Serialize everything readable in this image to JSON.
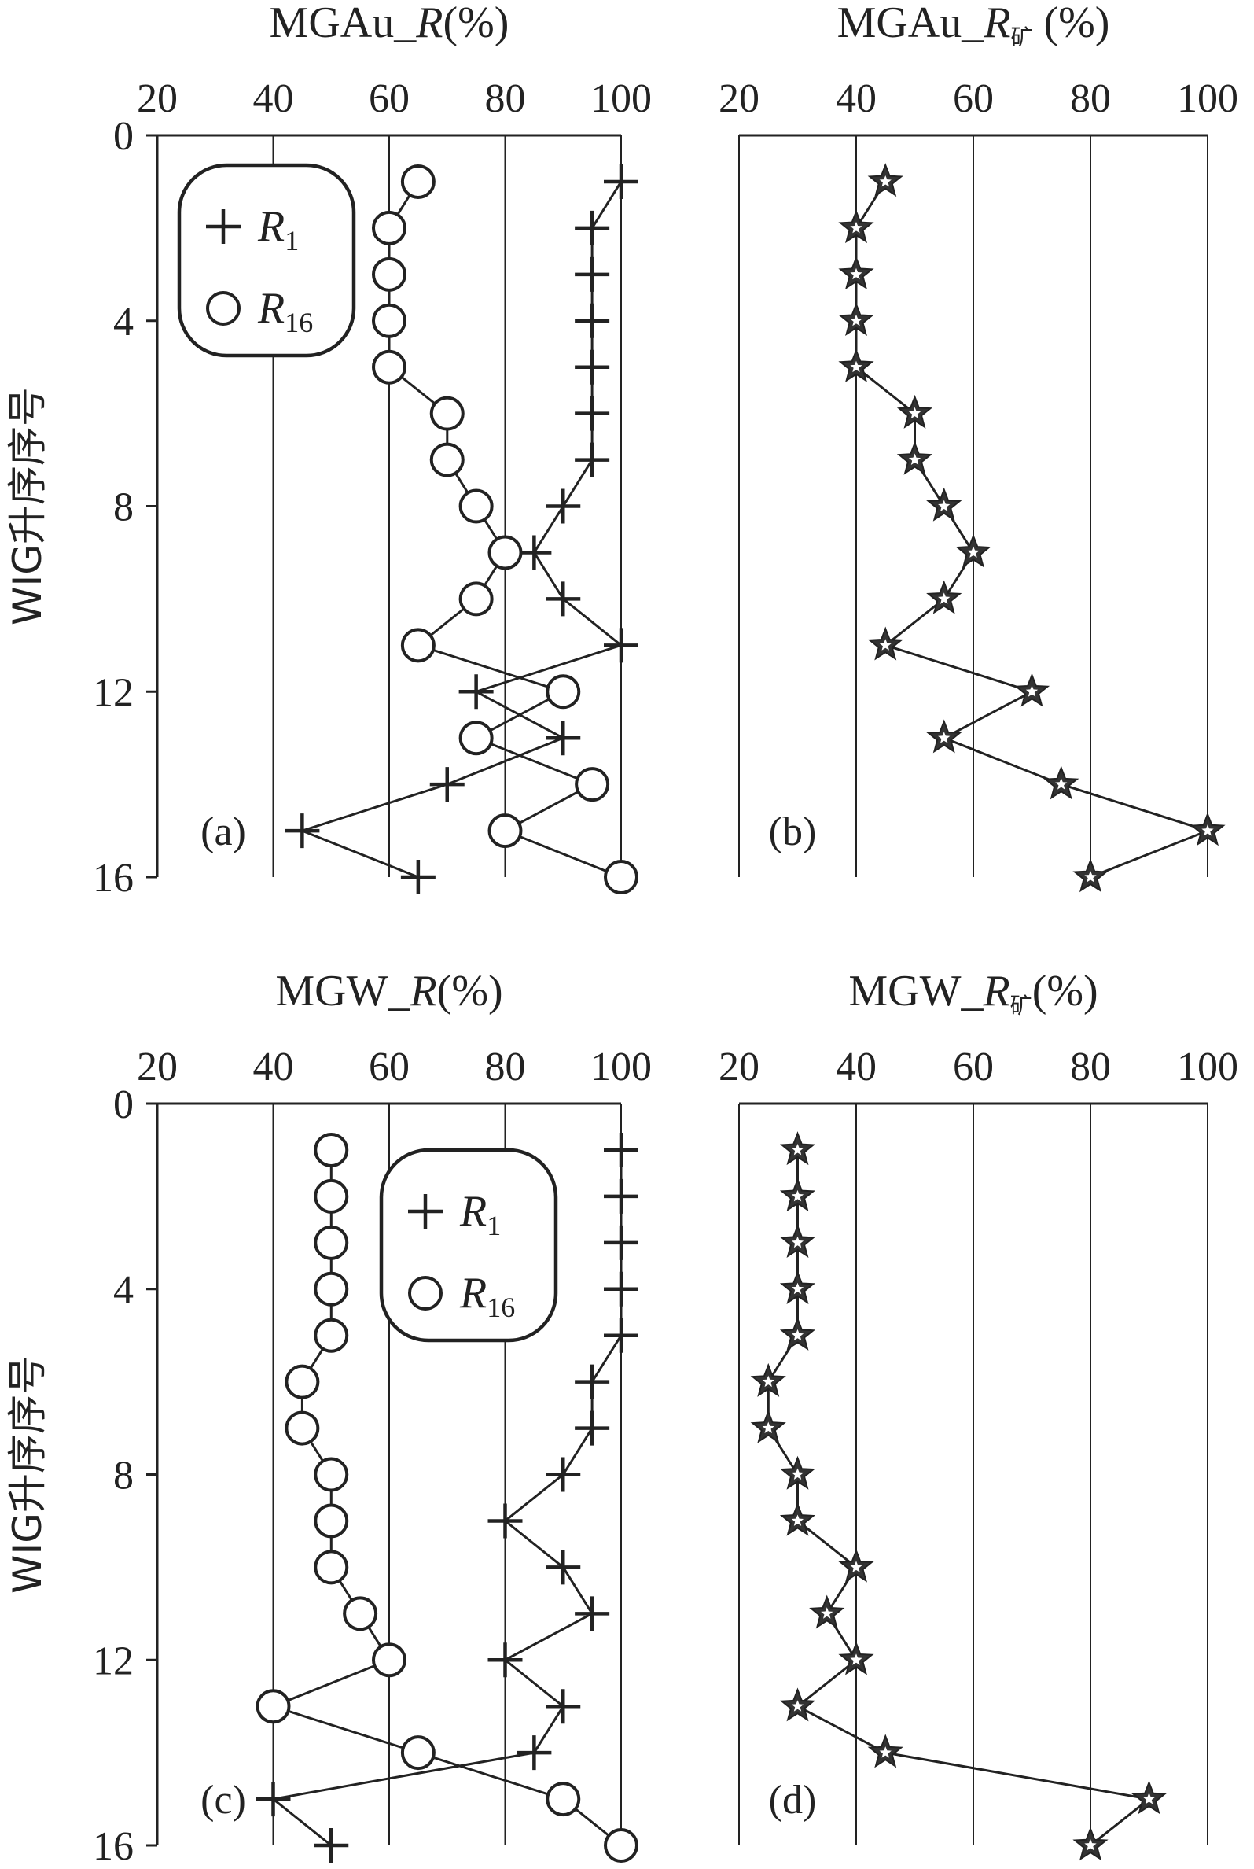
{
  "chart_data": [
    {
      "id": "a",
      "type": "line",
      "title": "MGAu_",
      "title_italic": "R",
      "title_sub": "",
      "title_suffix": "(%)",
      "panel_label": "(a)",
      "ylabel": "WIG升序序号",
      "xlim": [
        20,
        100
      ],
      "ylim": [
        0,
        16
      ],
      "xticks": [
        "20",
        "40",
        "60",
        "80",
        "100"
      ],
      "yticks": [
        "0",
        "4",
        "8",
        "12",
        "16"
      ],
      "legend": {
        "position": "top-left",
        "items": [
          {
            "symbol": "plus",
            "label": "R",
            "sub": "1"
          },
          {
            "symbol": "circle",
            "label": "R",
            "sub": "16"
          }
        ]
      },
      "series": [
        {
          "name": "R1",
          "marker": "plus",
          "y": [
            1,
            2,
            3,
            4,
            5,
            6,
            7,
            8,
            9,
            10,
            11,
            12,
            13,
            14,
            15,
            16
          ],
          "x": [
            100,
            95,
            95,
            95,
            95,
            95,
            95,
            90,
            85,
            90,
            100,
            75,
            90,
            70,
            45,
            65
          ]
        },
        {
          "name": "R16",
          "marker": "circle",
          "y": [
            1,
            2,
            3,
            4,
            5,
            6,
            7,
            8,
            9,
            10,
            11,
            12,
            13,
            14,
            15,
            16
          ],
          "x": [
            65,
            60,
            60,
            60,
            60,
            70,
            70,
            75,
            80,
            75,
            65,
            90,
            75,
            95,
            80,
            100
          ]
        }
      ]
    },
    {
      "id": "b",
      "type": "line",
      "title": "MGAu_",
      "title_italic": "R",
      "title_sub": "矿",
      "title_suffix": " (%)",
      "panel_label": "(b)",
      "ylabel": "",
      "xlim": [
        20,
        100
      ],
      "ylim": [
        0,
        16
      ],
      "xticks": [
        "20",
        "40",
        "60",
        "80",
        "100"
      ],
      "yticks": [],
      "legend": null,
      "series": [
        {
          "name": "R矿",
          "marker": "star",
          "y": [
            1,
            2,
            3,
            4,
            5,
            6,
            7,
            8,
            9,
            10,
            11,
            12,
            13,
            14,
            15,
            16
          ],
          "x": [
            45,
            40,
            40,
            40,
            40,
            50,
            50,
            55,
            60,
            55,
            45,
            70,
            55,
            75,
            100,
            80
          ]
        }
      ]
    },
    {
      "id": "c",
      "type": "line",
      "title": "MGW_",
      "title_italic": "R",
      "title_sub": "",
      "title_suffix": "(%)",
      "panel_label": "(c)",
      "ylabel": "WIG升序序号",
      "xlim": [
        20,
        100
      ],
      "ylim": [
        0,
        16
      ],
      "xticks": [
        "20",
        "40",
        "60",
        "80",
        "100"
      ],
      "yticks": [
        "0",
        "4",
        "8",
        "12",
        "16"
      ],
      "legend": {
        "position": "top-right",
        "items": [
          {
            "symbol": "plus",
            "label": "R",
            "sub": "1"
          },
          {
            "symbol": "circle",
            "label": "R",
            "sub": "16"
          }
        ]
      },
      "series": [
        {
          "name": "R1",
          "marker": "plus",
          "y": [
            1,
            2,
            3,
            4,
            5,
            6,
            7,
            8,
            9,
            10,
            11,
            12,
            13,
            14,
            15,
            16
          ],
          "x": [
            100,
            100,
            100,
            100,
            100,
            95,
            95,
            90,
            80,
            90,
            95,
            80,
            90,
            85,
            40,
            50
          ]
        },
        {
          "name": "R16",
          "marker": "circle",
          "y": [
            1,
            2,
            3,
            4,
            5,
            6,
            7,
            8,
            9,
            10,
            11,
            12,
            13,
            14,
            15,
            16
          ],
          "x": [
            50,
            50,
            50,
            50,
            50,
            45,
            45,
            50,
            50,
            50,
            55,
            60,
            40,
            65,
            90,
            100
          ]
        }
      ]
    },
    {
      "id": "d",
      "type": "line",
      "title": "MGW_",
      "title_italic": "R",
      "title_sub": "矿",
      "title_suffix": "(%)",
      "panel_label": "(d)",
      "ylabel": "",
      "xlim": [
        20,
        100
      ],
      "ylim": [
        0,
        16
      ],
      "xticks": [
        "20",
        "40",
        "60",
        "80",
        "100"
      ],
      "yticks": [],
      "legend": null,
      "series": [
        {
          "name": "R矿",
          "marker": "star",
          "y": [
            1,
            2,
            3,
            4,
            5,
            6,
            7,
            8,
            9,
            10,
            11,
            12,
            13,
            14,
            15,
            16
          ],
          "x": [
            30,
            30,
            30,
            30,
            30,
            25,
            25,
            30,
            30,
            40,
            35,
            40,
            30,
            45,
            90,
            80
          ]
        }
      ]
    }
  ]
}
